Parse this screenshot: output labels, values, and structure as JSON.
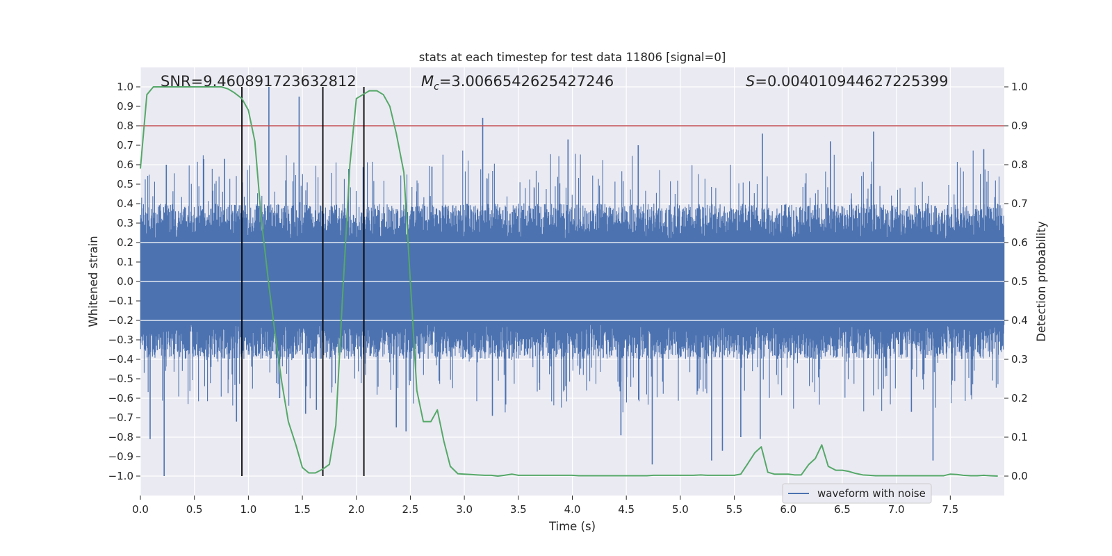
{
  "chart_data": {
    "type": "line",
    "title": "stats at each timestep for test data 11806 [signal=0]",
    "xlabel": "Time (s)",
    "ylabel": "Whitened strain",
    "y2label": "Detection probability",
    "xlim": [
      0.0,
      8.0
    ],
    "ylim": [
      -1.1,
      1.1
    ],
    "y2lim": [
      -0.05,
      1.05
    ],
    "grid": true,
    "legend_position": "lower-right",
    "x_ticks": [
      "0.0",
      "0.5",
      "1.0",
      "1.5",
      "2.0",
      "2.5",
      "3.0",
      "3.5",
      "4.0",
      "4.5",
      "5.0",
      "5.5",
      "6.0",
      "6.5",
      "7.0",
      "7.5"
    ],
    "y_ticks": [
      "1.0",
      "0.9",
      "0.8",
      "0.7",
      "0.6",
      "0.5",
      "0.4",
      "0.3",
      "0.2",
      "0.1",
      "0.0",
      "−0.1",
      "−0.2",
      "−0.3",
      "−0.4",
      "−0.5",
      "−0.6",
      "−0.7",
      "−0.8",
      "−0.9",
      "−1.0"
    ],
    "y2_ticks": [
      "1.0",
      "0.9",
      "0.8",
      "0.7",
      "0.6",
      "0.5",
      "0.4",
      "0.3",
      "0.2",
      "0.1",
      "0.0"
    ],
    "annotations": {
      "snr": "SNR=9.460891723632812",
      "mc_symbol": "M",
      "mc_sub": "c",
      "mc_value": "=3.0066542625427246",
      "s_symbol": "S",
      "s_value": "=0.004010944627225399"
    },
    "threshold": {
      "value": 0.9,
      "axis": "right",
      "color": "#c44e52"
    },
    "vlines": [
      0.94,
      1.69,
      2.07
    ],
    "series": [
      {
        "name": "waveform with noise",
        "axis": "left",
        "color": "#4c72b0",
        "envelope": {
          "x": [
            0.0,
            8.0
          ],
          "upper_typical": 0.4,
          "lower_typical": -0.4
        },
        "peaks": [
          [
            0.22,
            -1.0
          ],
          [
            0.24,
            0.6
          ],
          [
            0.09,
            -0.81
          ],
          [
            0.78,
            0.63
          ],
          [
            0.89,
            -0.72
          ],
          [
            1.19,
            1.0
          ],
          [
            1.47,
            0.95
          ],
          [
            1.53,
            -0.68
          ],
          [
            1.63,
            -0.66
          ],
          [
            1.29,
            -0.6
          ],
          [
            2.37,
            -0.75
          ],
          [
            2.46,
            -0.77
          ],
          [
            3.17,
            0.84
          ],
          [
            3.26,
            -0.69
          ],
          [
            4.45,
            -0.79
          ],
          [
            4.74,
            -0.94
          ],
          [
            5.29,
            -0.92
          ],
          [
            5.39,
            -0.87
          ],
          [
            5.56,
            -0.8
          ],
          [
            5.74,
            -0.81
          ],
          [
            5.76,
            0.76
          ],
          [
            6.79,
            0.77
          ],
          [
            7.14,
            -0.67
          ],
          [
            7.34,
            -0.92
          ],
          [
            7.81,
            0.68
          ],
          [
            2.7,
            0.59
          ],
          [
            3.96,
            0.73
          ],
          [
            4.61,
            0.7
          ],
          [
            6.39,
            0.72
          ]
        ]
      },
      {
        "name": "detection probability",
        "axis": "right",
        "color": "#55a868",
        "x": [
          0.0,
          0.06,
          0.12,
          0.18,
          0.25,
          0.31,
          0.37,
          0.44,
          0.5,
          0.56,
          0.62,
          0.69,
          0.75,
          0.81,
          0.87,
          0.94,
          1.0,
          1.06,
          1.12,
          1.19,
          1.25,
          1.31,
          1.37,
          1.44,
          1.5,
          1.56,
          1.62,
          1.69,
          1.75,
          1.81,
          1.87,
          1.94,
          2.0,
          2.06,
          2.12,
          2.19,
          2.25,
          2.31,
          2.37,
          2.44,
          2.5,
          2.56,
          2.62,
          2.69,
          2.75,
          2.81,
          2.87,
          2.94,
          3.0,
          3.06,
          3.12,
          3.19,
          3.25,
          3.31,
          3.37,
          3.44,
          3.5,
          3.56,
          3.62,
          3.69,
          3.75,
          3.81,
          3.87,
          3.94,
          4.0,
          4.06,
          4.12,
          4.19,
          4.25,
          4.31,
          4.37,
          4.44,
          4.5,
          4.56,
          4.62,
          4.69,
          4.75,
          4.81,
          4.87,
          4.94,
          5.0,
          5.06,
          5.12,
          5.19,
          5.25,
          5.31,
          5.37,
          5.44,
          5.5,
          5.56,
          5.62,
          5.69,
          5.75,
          5.81,
          5.87,
          5.94,
          6.0,
          6.06,
          6.12,
          6.19,
          6.25,
          6.31,
          6.37,
          6.44,
          6.5,
          6.56,
          6.62,
          6.69,
          6.75,
          6.81,
          6.87,
          6.94,
          7.0,
          7.06,
          7.12,
          7.19,
          7.25,
          7.31,
          7.37,
          7.44,
          7.5,
          7.56,
          7.62,
          7.69,
          7.75,
          7.81,
          7.87,
          7.94
        ],
        "values": [
          0.79,
          0.98,
          1.0,
          1.0,
          1.0,
          1.0,
          1.0,
          1.0,
          1.0,
          1.0,
          1.0,
          1.0,
          1.0,
          0.995,
          0.985,
          0.97,
          0.94,
          0.86,
          0.66,
          0.49,
          0.36,
          0.24,
          0.14,
          0.08,
          0.022,
          0.008,
          0.008,
          0.018,
          0.03,
          0.13,
          0.45,
          0.8,
          0.97,
          0.98,
          0.99,
          0.99,
          0.98,
          0.95,
          0.88,
          0.78,
          0.5,
          0.22,
          0.14,
          0.14,
          0.17,
          0.09,
          0.025,
          0.006,
          0.005,
          0.004,
          0.003,
          0.002,
          0.002,
          0.0,
          0.002,
          0.005,
          0.002,
          0.002,
          0.002,
          0.002,
          0.002,
          0.002,
          0.002,
          0.002,
          0.002,
          0.001,
          0.001,
          0.001,
          0.001,
          0.001,
          0.001,
          0.001,
          0.001,
          0.001,
          0.001,
          0.001,
          0.002,
          0.002,
          0.002,
          0.002,
          0.002,
          0.002,
          0.002,
          0.003,
          0.002,
          0.002,
          0.002,
          0.002,
          0.002,
          0.005,
          0.03,
          0.06,
          0.075,
          0.01,
          0.005,
          0.005,
          0.005,
          0.003,
          0.003,
          0.03,
          0.045,
          0.08,
          0.025,
          0.015,
          0.015,
          0.012,
          0.007,
          0.003,
          0.002,
          0.001,
          0.001,
          0.001,
          0.001,
          0.001,
          0.001,
          0.001,
          0.001,
          0.001,
          0.001,
          0.001,
          0.005,
          0.004,
          0.002,
          0.001,
          0.001,
          0.002,
          0.001,
          0.0
        ]
      }
    ]
  }
}
